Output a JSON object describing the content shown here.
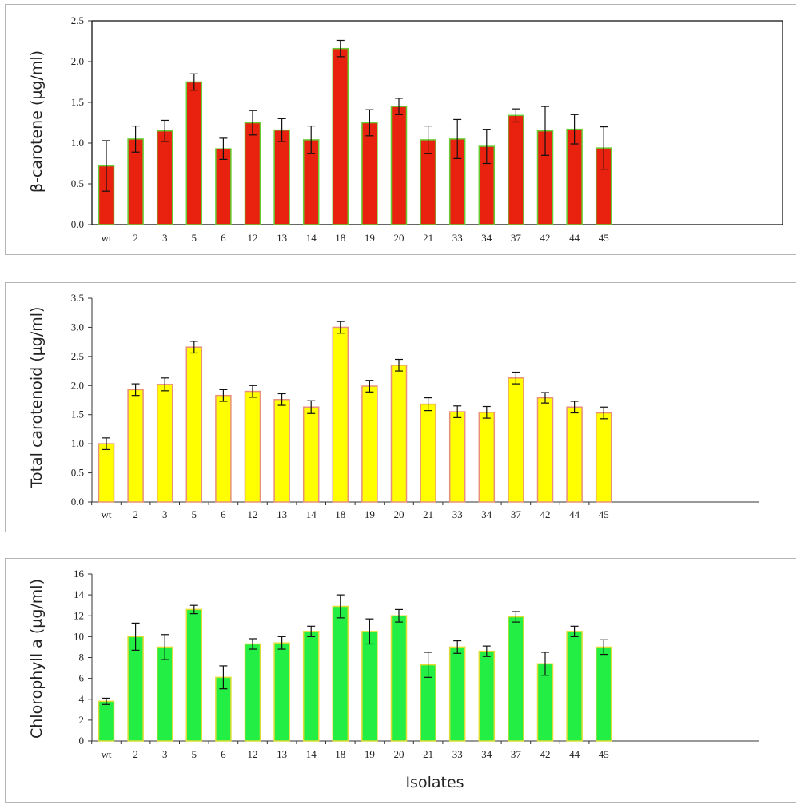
{
  "chart_data": [
    {
      "type": "bar",
      "ylabel": "β-carotene (µg/ml)",
      "xlabel": "",
      "categories": [
        "wt",
        "2",
        "3",
        "5",
        "6",
        "12",
        "13",
        "14",
        "18",
        "19",
        "20",
        "21",
        "33",
        "34",
        "37",
        "42",
        "44",
        "45"
      ],
      "values": [
        0.72,
        1.05,
        1.15,
        1.75,
        0.93,
        1.25,
        1.16,
        1.04,
        2.16,
        1.25,
        1.45,
        1.04,
        1.05,
        0.96,
        1.34,
        1.15,
        1.17,
        0.94
      ],
      "errors": [
        0.31,
        0.16,
        0.13,
        0.1,
        0.13,
        0.15,
        0.14,
        0.17,
        0.1,
        0.16,
        0.1,
        0.17,
        0.24,
        0.21,
        0.08,
        0.3,
        0.18,
        0.26
      ],
      "ylim": [
        0,
        2.5
      ],
      "yticks": [
        "0.0",
        "0.5",
        "1.0",
        "1.5",
        "2.0",
        "2.5"
      ],
      "bar_color": "#e8220f",
      "edge_color": "#66cc33",
      "frame": true,
      "grid": false
    },
    {
      "type": "bar",
      "ylabel": "Total carotenoid (µg/ml)",
      "xlabel": "",
      "categories": [
        "wt",
        "2",
        "3",
        "5",
        "6",
        "12",
        "13",
        "14",
        "18",
        "19",
        "20",
        "21",
        "33",
        "34",
        "37",
        "42",
        "44",
        "45"
      ],
      "values": [
        1.0,
        1.93,
        2.02,
        2.66,
        1.83,
        1.9,
        1.76,
        1.63,
        3.0,
        1.99,
        2.35,
        1.68,
        1.55,
        1.54,
        2.13,
        1.79,
        1.63,
        1.53
      ],
      "errors": [
        0.1,
        0.1,
        0.11,
        0.1,
        0.1,
        0.1,
        0.1,
        0.11,
        0.1,
        0.1,
        0.1,
        0.11,
        0.1,
        0.1,
        0.1,
        0.09,
        0.1,
        0.1
      ],
      "ylim": [
        0,
        3.5
      ],
      "yticks": [
        "0.0",
        "0.5",
        "1.0",
        "1.5",
        "2.0",
        "2.5",
        "3.0",
        "3.5"
      ],
      "bar_color": "#ffff00",
      "edge_color": "#e8907a",
      "frame": false,
      "grid": false
    },
    {
      "type": "bar",
      "ylabel": "Chlorophyll a (µg/ml)",
      "xlabel": "Isolates",
      "categories": [
        "wt",
        "2",
        "3",
        "5",
        "6",
        "12",
        "13",
        "14",
        "18",
        "19",
        "20",
        "21",
        "33",
        "34",
        "37",
        "42",
        "44",
        "45"
      ],
      "values": [
        3.8,
        10.0,
        9.0,
        12.6,
        6.1,
        9.3,
        9.4,
        10.5,
        12.9,
        10.5,
        12.0,
        7.3,
        9.0,
        8.6,
        11.9,
        7.4,
        10.5,
        9.0
      ],
      "errors": [
        0.3,
        1.3,
        1.2,
        0.4,
        1.1,
        0.5,
        0.6,
        0.5,
        1.1,
        1.2,
        0.6,
        1.2,
        0.6,
        0.5,
        0.5,
        1.1,
        0.5,
        0.7
      ],
      "ylim": [
        0,
        16
      ],
      "yticks": [
        "0",
        "2",
        "4",
        "6",
        "8",
        "10",
        "12",
        "14",
        "16"
      ],
      "bar_color": "#22ee44",
      "edge_color": "#dddd33",
      "frame": false,
      "grid": false
    }
  ]
}
